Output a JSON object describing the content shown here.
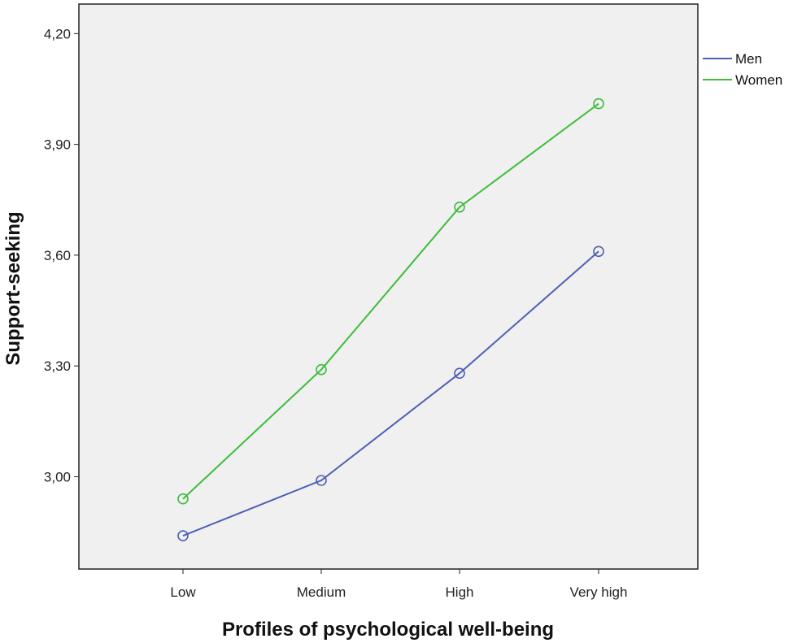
{
  "chart_data": {
    "type": "line",
    "title": "",
    "xlabel": "Profiles of psychological well-being",
    "ylabel": "Support-seeking",
    "categories": [
      "Low",
      "Medium",
      "High",
      "Very high"
    ],
    "yticks": [
      "3,00",
      "3,30",
      "3,60",
      "3,90",
      "4,20"
    ],
    "ylim": [
      2.75,
      4.28
    ],
    "grid": false,
    "legend_position": "right",
    "background_color": "#f0f0f0",
    "series": [
      {
        "name": "Men",
        "color": "#4e5fb4",
        "values": [
          2.84,
          2.99,
          3.28,
          3.61
        ]
      },
      {
        "name": "Women",
        "color": "#3cbd3c",
        "values": [
          2.94,
          3.29,
          3.73,
          4.01
        ]
      }
    ]
  }
}
